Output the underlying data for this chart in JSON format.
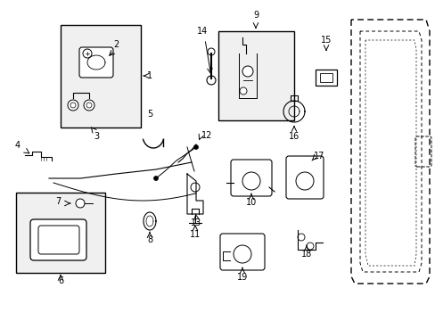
{
  "bg_color": "#ffffff",
  "line_color": "#000000",
  "figsize": [
    4.89,
    3.6
  ],
  "dpi": 100,
  "xlim": [
    0,
    489
  ],
  "ylim": [
    0,
    360
  ]
}
